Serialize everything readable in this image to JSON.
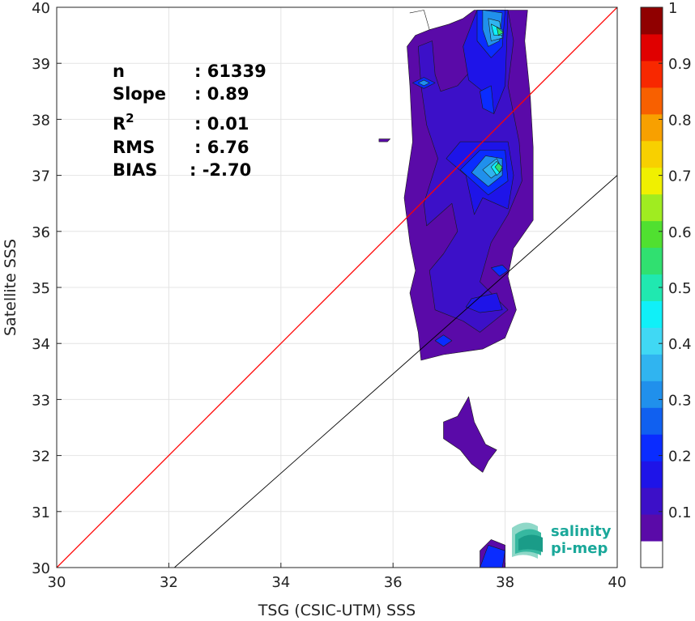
{
  "chart_data": {
    "type": "heatmap",
    "title": "",
    "xlabel": "TSG (CSIC-UTM) SSS",
    "ylabel": "Satellite SSS",
    "xlim": [
      30,
      40
    ],
    "ylim": [
      30,
      40
    ],
    "x_ticks": [
      30,
      32,
      34,
      36,
      38,
      40
    ],
    "y_ticks": [
      30,
      31,
      32,
      33,
      34,
      35,
      36,
      37,
      38,
      39,
      40
    ],
    "grid": true,
    "stats": [
      {
        "label": "n",
        "value": ": 61339"
      },
      {
        "label": "Slope",
        "value": ": 0.89"
      },
      {
        "label": "R",
        "sup": "2",
        "value": ": 0.01"
      },
      {
        "label": "RMS",
        "value": ": 6.76"
      },
      {
        "label": "BIAS",
        "value": ": -2.70"
      }
    ],
    "lines": [
      {
        "kind": "one-to-one",
        "color": "#ff0000",
        "points": [
          [
            30,
            30
          ],
          [
            40,
            40
          ]
        ]
      },
      {
        "kind": "regression",
        "color": "#000000",
        "points": [
          [
            32.1,
            30
          ],
          [
            40,
            37
          ]
        ]
      }
    ],
    "colorbar": {
      "min": 0,
      "max": 1,
      "tick_values": [
        0.1,
        0.2,
        0.3,
        0.4,
        0.5,
        0.6,
        0.7,
        0.8,
        0.9,
        1
      ],
      "tick_labels": [
        "0.1",
        "0.2",
        "0.3",
        "0.4",
        "0.5",
        "0.6",
        "0.7",
        "0.8",
        "0.9",
        "1"
      ],
      "levels": 20,
      "colors": [
        "#ffffff",
        "#5a0aa8",
        "#3c10c8",
        "#1e14e8",
        "#0a2cff",
        "#1060f0",
        "#2090ec",
        "#30b4f0",
        "#40d8f4",
        "#10f0f8",
        "#20e8b0",
        "#30e070",
        "#50e030",
        "#a0ec20",
        "#f0f000",
        "#f8d000",
        "#f8a000",
        "#f86000",
        "#f82800",
        "#e00000",
        "#900000"
      ]
    },
    "density_regions": [
      {
        "level": 1,
        "points": [
          [
            36.3,
            39.9
          ],
          [
            36.55,
            39.95
          ],
          [
            36.65,
            39.6
          ],
          [
            36.4,
            39.5
          ],
          [
            36.25,
            39.3
          ],
          [
            36.3,
            38.6
          ],
          [
            36.35,
            37.6
          ],
          [
            36.2,
            36.6
          ],
          [
            36.3,
            35.8
          ],
          [
            36.4,
            35.3
          ],
          [
            36.3,
            34.9
          ],
          [
            36.45,
            34.2
          ],
          [
            36.5,
            33.7
          ],
          [
            36.9,
            33.8
          ],
          [
            37.6,
            33.9
          ],
          [
            38.0,
            34.1
          ],
          [
            38.2,
            34.6
          ],
          [
            38.05,
            35.2
          ],
          [
            38.15,
            35.7
          ],
          [
            38.5,
            36.2
          ],
          [
            38.5,
            37.5
          ],
          [
            38.45,
            38.4
          ],
          [
            38.35,
            39.4
          ],
          [
            38.4,
            39.95
          ],
          [
            37.45,
            39.95
          ],
          [
            37.25,
            39.8
          ],
          [
            37.0,
            39.7
          ],
          [
            36.65,
            39.6
          ],
          [
            36.55,
            39.95
          ]
        ]
      },
      {
        "level": 1,
        "points": [
          [
            35.75,
            37.65
          ],
          [
            35.95,
            37.65
          ],
          [
            35.9,
            37.6
          ],
          [
            35.75,
            37.6
          ]
        ]
      },
      {
        "level": 1,
        "points": [
          [
            36.9,
            32.6
          ],
          [
            37.15,
            32.7
          ],
          [
            37.35,
            33.05
          ],
          [
            37.45,
            32.6
          ],
          [
            37.65,
            32.2
          ],
          [
            37.85,
            32.1
          ],
          [
            37.7,
            31.9
          ],
          [
            37.6,
            31.7
          ],
          [
            37.4,
            31.85
          ],
          [
            37.2,
            32.1
          ],
          [
            36.9,
            32.3
          ]
        ]
      },
      {
        "level": 1,
        "points": [
          [
            37.55,
            30.0
          ],
          [
            37.55,
            30.3
          ],
          [
            37.75,
            30.5
          ],
          [
            38.0,
            30.4
          ],
          [
            38.0,
            30.0
          ]
        ]
      },
      {
        "level": 2,
        "points": [
          [
            36.45,
            39.3
          ],
          [
            36.7,
            39.4
          ],
          [
            36.75,
            38.8
          ],
          [
            36.85,
            38.5
          ],
          [
            37.15,
            38.6
          ],
          [
            37.5,
            39.0
          ],
          [
            37.55,
            39.6
          ],
          [
            37.75,
            39.95
          ],
          [
            38.05,
            39.95
          ],
          [
            38.15,
            39.4
          ],
          [
            38.05,
            38.6
          ],
          [
            38.25,
            37.6
          ],
          [
            38.3,
            36.9
          ],
          [
            38.05,
            36.3
          ],
          [
            37.75,
            35.8
          ],
          [
            37.55,
            35.1
          ],
          [
            38.05,
            34.6
          ],
          [
            37.55,
            34.2
          ],
          [
            37.25,
            34.4
          ],
          [
            36.75,
            34.6
          ],
          [
            36.65,
            35.3
          ],
          [
            36.9,
            35.6
          ],
          [
            37.15,
            36.0
          ],
          [
            37.05,
            36.5
          ],
          [
            36.6,
            36.1
          ],
          [
            36.55,
            36.5
          ],
          [
            36.8,
            37.3
          ],
          [
            36.6,
            37.9
          ],
          [
            36.5,
            38.6
          ]
        ]
      },
      {
        "level": 3,
        "points": [
          [
            37.25,
            39.3
          ],
          [
            37.5,
            39.95
          ],
          [
            38.05,
            39.95
          ],
          [
            38.0,
            38.6
          ],
          [
            37.8,
            38.1
          ],
          [
            37.6,
            38.5
          ],
          [
            37.35,
            38.7
          ]
        ]
      },
      {
        "level": 3,
        "points": [
          [
            36.95,
            37.3
          ],
          [
            37.3,
            37.0
          ],
          [
            37.45,
            36.3
          ],
          [
            37.6,
            36.6
          ],
          [
            38.05,
            36.4
          ],
          [
            38.15,
            37.0
          ],
          [
            38.05,
            37.6
          ],
          [
            37.6,
            37.6
          ],
          [
            37.2,
            37.6
          ]
        ]
      },
      {
        "level": 3,
        "points": [
          [
            37.4,
            34.8
          ],
          [
            37.85,
            34.9
          ],
          [
            37.95,
            34.6
          ],
          [
            37.55,
            34.55
          ],
          [
            37.3,
            34.65
          ]
        ]
      },
      {
        "level": 4,
        "points": [
          [
            37.5,
            39.95
          ],
          [
            38.0,
            39.95
          ],
          [
            37.95,
            39.3
          ],
          [
            37.75,
            39.1
          ],
          [
            37.5,
            39.4
          ]
        ]
      },
      {
        "level": 4,
        "points": [
          [
            37.55,
            38.5
          ],
          [
            37.75,
            38.6
          ],
          [
            37.8,
            38.1
          ],
          [
            37.6,
            38.2
          ]
        ]
      },
      {
        "level": 4,
        "points": [
          [
            37.2,
            37.1
          ],
          [
            37.7,
            36.65
          ],
          [
            38.05,
            36.9
          ],
          [
            38.0,
            37.45
          ],
          [
            37.55,
            37.45
          ]
        ]
      },
      {
        "level": 4,
        "points": [
          [
            36.35,
            38.65
          ],
          [
            36.55,
            38.75
          ],
          [
            36.75,
            38.65
          ],
          [
            36.55,
            38.55
          ]
        ]
      },
      {
        "level": 4,
        "points": [
          [
            36.75,
            34.05
          ],
          [
            36.9,
            34.15
          ],
          [
            37.05,
            34.05
          ],
          [
            36.9,
            33.95
          ]
        ]
      },
      {
        "level": 4,
        "points": [
          [
            37.75,
            35.35
          ],
          [
            37.95,
            35.4
          ],
          [
            38.05,
            35.3
          ],
          [
            37.9,
            35.2
          ]
        ]
      },
      {
        "level": 4,
        "points": [
          [
            37.55,
            30.0
          ],
          [
            37.7,
            30.4
          ],
          [
            38.0,
            30.3
          ],
          [
            37.95,
            30.0
          ]
        ]
      },
      {
        "level": 6,
        "points": [
          [
            37.6,
            39.95
          ],
          [
            37.95,
            39.9
          ],
          [
            37.9,
            39.4
          ],
          [
            37.7,
            39.3
          ],
          [
            37.6,
            39.6
          ]
        ]
      },
      {
        "level": 6,
        "points": [
          [
            37.4,
            37.05
          ],
          [
            37.7,
            36.8
          ],
          [
            37.95,
            37.0
          ],
          [
            37.95,
            37.3
          ],
          [
            37.65,
            37.35
          ]
        ]
      },
      {
        "level": 6,
        "points": [
          [
            36.45,
            38.65
          ],
          [
            36.55,
            38.7
          ],
          [
            36.65,
            38.65
          ],
          [
            36.55,
            38.6
          ]
        ]
      },
      {
        "level": 7,
        "points": [
          [
            37.7,
            39.8
          ],
          [
            37.9,
            39.75
          ],
          [
            37.95,
            39.45
          ],
          [
            37.75,
            39.4
          ]
        ]
      },
      {
        "level": 7,
        "points": [
          [
            37.6,
            37.1
          ],
          [
            37.75,
            36.95
          ],
          [
            37.95,
            37.1
          ],
          [
            37.85,
            37.3
          ]
        ]
      },
      {
        "level": 9,
        "points": [
          [
            37.75,
            39.7
          ],
          [
            37.95,
            39.6
          ],
          [
            37.95,
            39.5
          ],
          [
            37.8,
            39.5
          ]
        ]
      },
      {
        "level": 9,
        "points": [
          [
            37.75,
            37.15
          ],
          [
            37.85,
            37.0
          ],
          [
            37.95,
            37.1
          ],
          [
            37.85,
            37.25
          ]
        ]
      },
      {
        "level": 11,
        "points": [
          [
            37.85,
            39.65
          ],
          [
            37.97,
            39.55
          ],
          [
            37.88,
            39.5
          ]
        ]
      },
      {
        "level": 11,
        "points": [
          [
            37.82,
            37.15
          ],
          [
            37.9,
            37.05
          ],
          [
            37.95,
            37.15
          ],
          [
            37.88,
            37.22
          ]
        ]
      }
    ]
  },
  "logo": {
    "line1": "salinity",
    "line2": "pi-mep"
  }
}
